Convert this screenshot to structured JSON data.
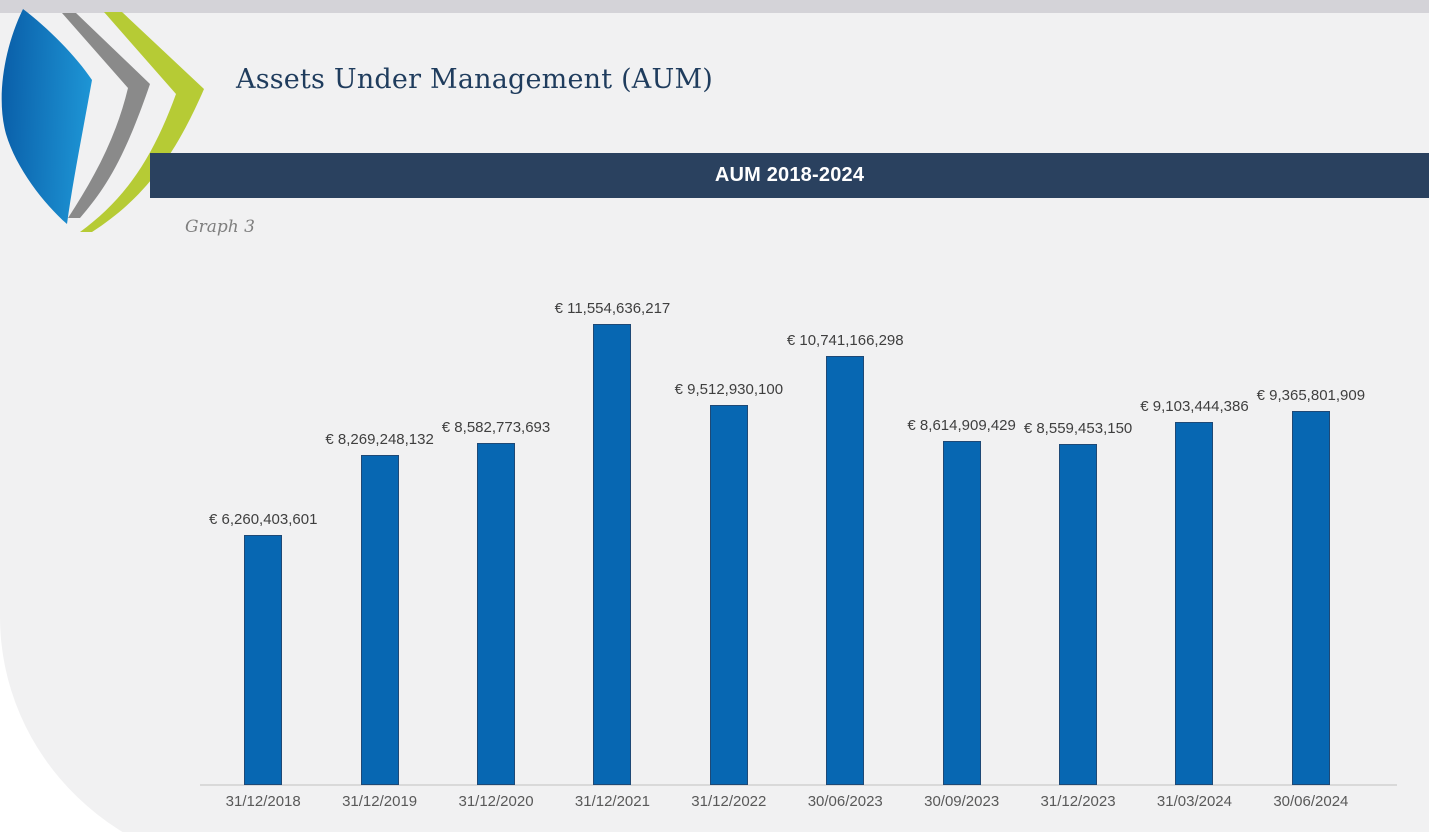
{
  "page": {
    "title": "Assets Under Management (AUM)",
    "banner_title": "AUM 2018-2024",
    "graph_caption": "Graph 3"
  },
  "logo": {
    "name": "triple-chevron-logo",
    "colors": {
      "blue_dark": "#0a5fa9",
      "blue_light": "#1e96d6",
      "gray": "#8a8a8a",
      "green": "#b6cb35"
    }
  },
  "colors": {
    "top_strip": "#d4d3d8",
    "panel_background": "#f1f1f2",
    "banner_background": "#2a415f",
    "title_text": "#1f3c5d",
    "caption_text": "#7f7f7f",
    "value_label_text": "#3f3f3f",
    "axis_label_text": "#595959",
    "axis_line": "#d9d9d9"
  },
  "chart_data": {
    "type": "bar",
    "title": "AUM 2018-2024",
    "xlabel": "",
    "ylabel": "",
    "grid": false,
    "legend_position": "none",
    "currency": "EUR",
    "ylim": [
      0,
      11554636217
    ],
    "bar_color": "#0767b2",
    "bar_border_color": "#1e4976",
    "categories": [
      "31/12/2018",
      "31/12/2019",
      "31/12/2020",
      "31/12/2021",
      "31/12/2022",
      "30/06/2023",
      "30/09/2023",
      "31/12/2023",
      "31/03/2024",
      "30/06/2024"
    ],
    "values": [
      6260403601,
      8269248132,
      8582773693,
      11554636217,
      9512930100,
      10741166298,
      8614909429,
      8559453150,
      9103444386,
      9365801909
    ],
    "data_labels": [
      "€ 6,260,403,601",
      "€ 8,269,248,132",
      "€ 8,582,773,693",
      "€ 11,554,636,217",
      "€ 9,512,930,100",
      "€ 10,741,166,298",
      "€ 8,614,909,429",
      "€ 8,559,453,150",
      "€ 9,103,444,386",
      "€ 9,365,801,909"
    ]
  }
}
